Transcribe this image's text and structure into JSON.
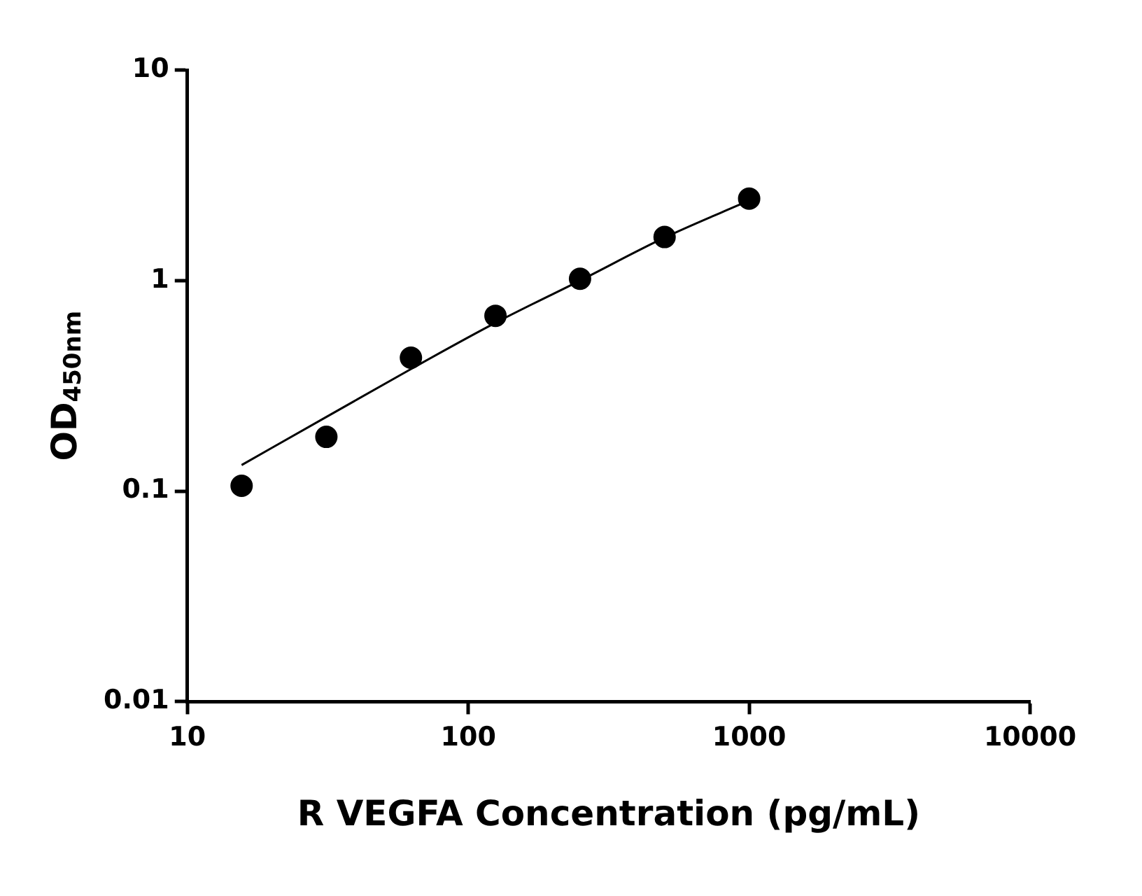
{
  "chart_data": {
    "type": "scatter",
    "xlabel": "R VEGFA Concentration (pg/mL)",
    "ylabel": "OD$_{450nm}$",
    "log": "xy",
    "xlim": [
      10,
      10000
    ],
    "xticks": [
      10,
      100,
      1000,
      10000
    ],
    "ylim": [
      0.01,
      10
    ],
    "yticks": [
      0.01,
      0.1,
      1,
      10
    ],
    "grid": false,
    "legend": false,
    "series": [
      {
        "type": "scatter",
        "color": "#000000",
        "marker": "circle",
        "x": [
          15.6,
          31.25,
          62.5,
          125,
          250,
          500,
          1000
        ],
        "values": [
          0.106,
          0.181,
          0.43,
          0.68,
          1.02,
          1.61,
          2.45
        ]
      },
      {
        "type": "line",
        "color": "#000000",
        "marker": "none",
        "line_style": "solid",
        "x": [
          15.6,
          31.25,
          62.5,
          125,
          250,
          500,
          1000
        ],
        "values": [
          0.133,
          0.225,
          0.38,
          0.63,
          1.0,
          1.6,
          2.4
        ]
      }
    ]
  }
}
